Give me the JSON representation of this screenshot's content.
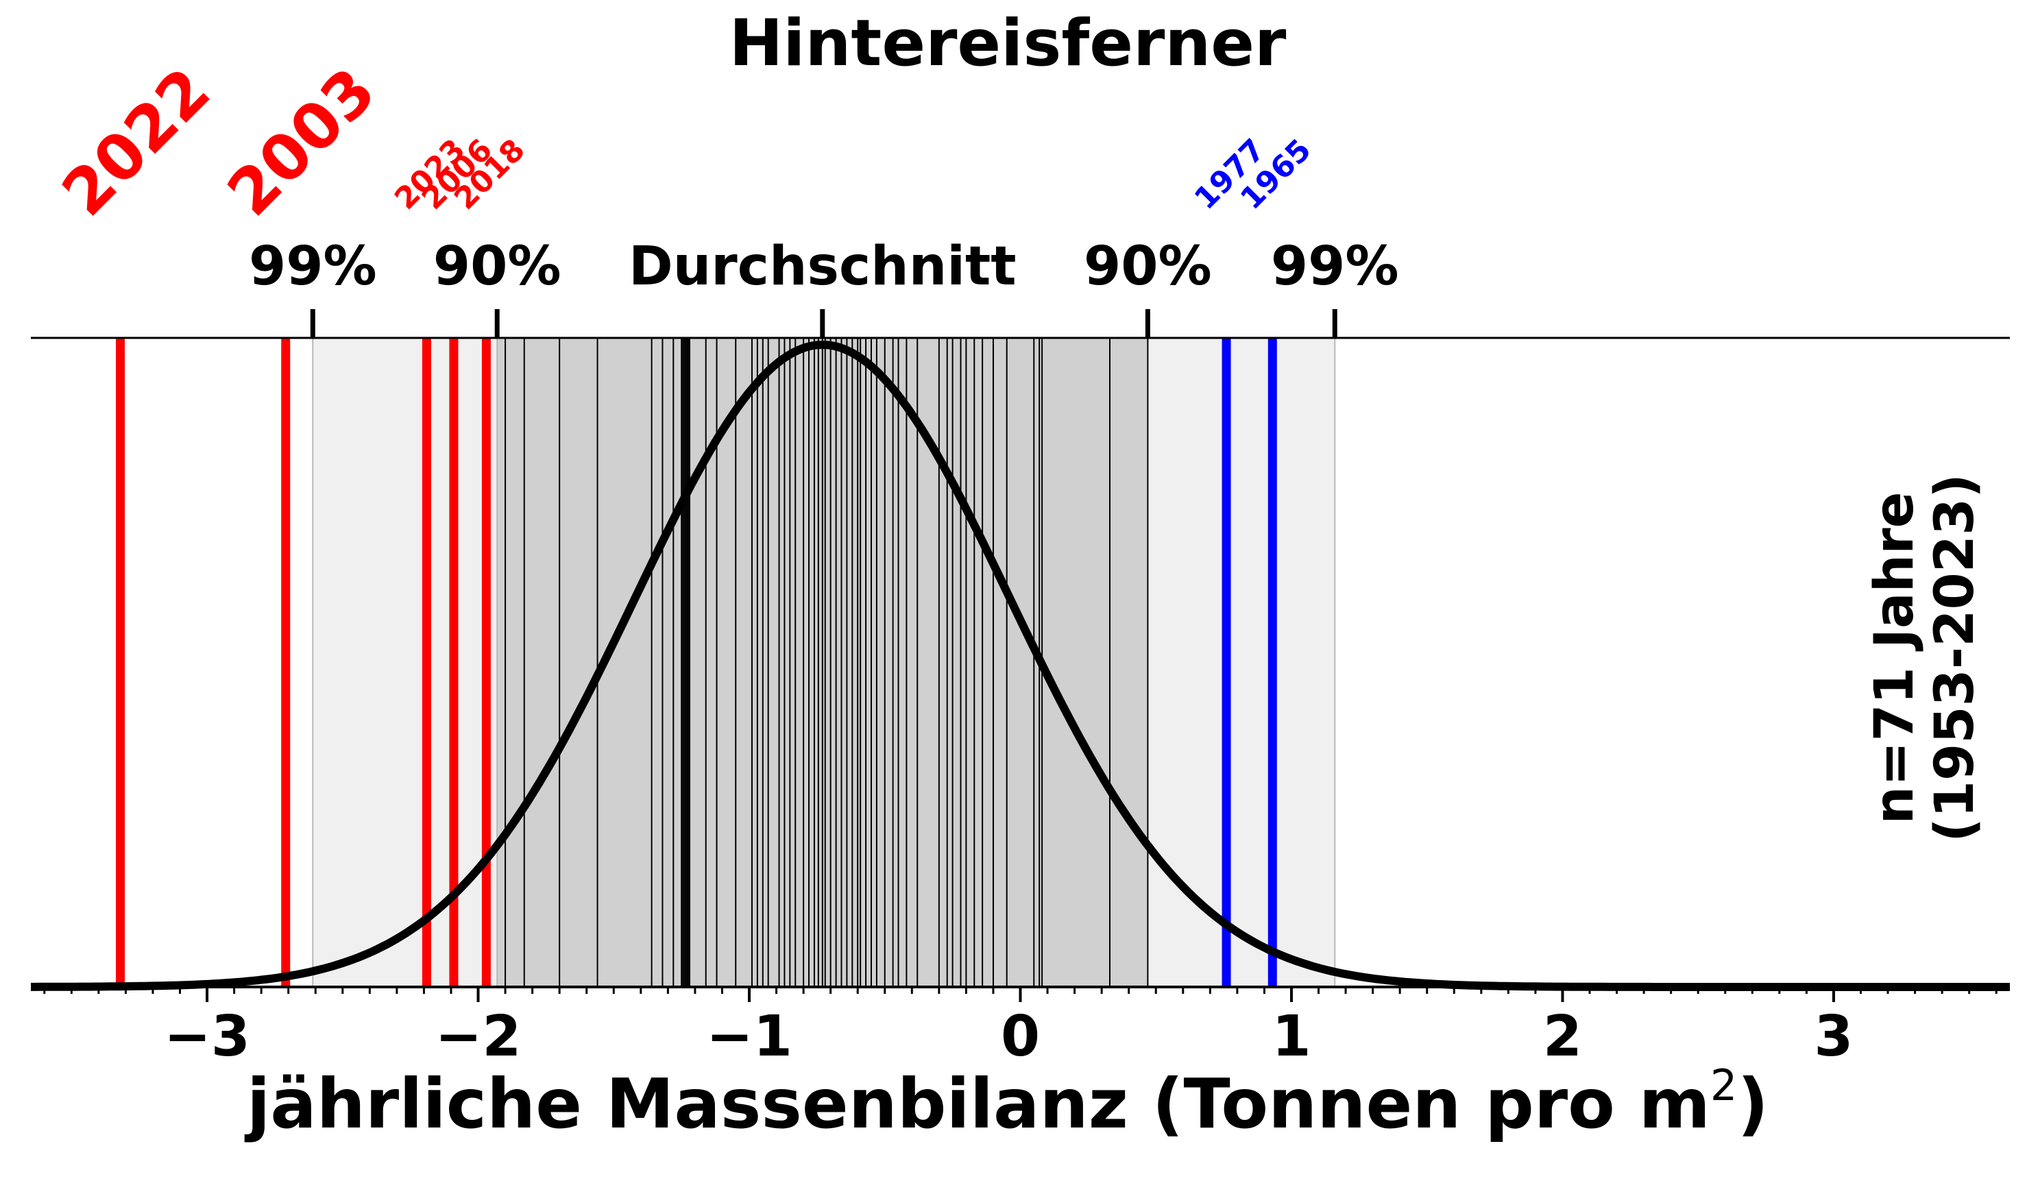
{
  "chart_data": {
    "type": "distribution",
    "title": "Hintereisferner",
    "xlabel": "jährliche Massenbilanz (Tonnen pro m²)",
    "xlabel_main": "jährliche Massenbilanz (Tonnen pro m",
    "xlabel_sup": "2",
    "xlabel_close": ")",
    "xlim": [
      -3.65,
      3.65
    ],
    "xticks": [
      {
        "value": -3,
        "label": "−3"
      },
      {
        "value": -2,
        "label": "−2"
      },
      {
        "value": -1,
        "label": "−1"
      },
      {
        "value": 0,
        "label": "0"
      },
      {
        "value": 1,
        "label": "1"
      },
      {
        "value": 2,
        "label": "2"
      },
      {
        "value": 3,
        "label": "3"
      }
    ],
    "minor_tick_step": 0.1,
    "distribution": {
      "mean": -0.73,
      "sd": 0.69
    },
    "percentile_markers": [
      {
        "value": -2.61,
        "label": "99%"
      },
      {
        "value": -1.93,
        "label": "90%"
      },
      {
        "value": -0.73,
        "label": "Durchschnitt"
      },
      {
        "value": 0.47,
        "label": "90%"
      },
      {
        "value": 1.16,
        "label": "99%"
      }
    ],
    "bands": [
      {
        "from": -2.61,
        "to": 1.16,
        "color": "#f0f0f0"
      },
      {
        "from": -1.93,
        "to": 0.47,
        "color": "#d0d0d0"
      }
    ],
    "year_lines": [
      -1.9,
      -1.83,
      -1.7,
      -1.56,
      -1.36,
      -1.32,
      -1.28,
      -1.25,
      -1.245,
      -1.24,
      -1.235,
      -1.23,
      -1.225,
      -1.22,
      -1.16,
      -1.12,
      -1.05,
      -0.99,
      -0.97,
      -0.95,
      -0.93,
      -0.89,
      -0.87,
      -0.85,
      -0.83,
      -0.8,
      -0.78,
      -0.76,
      -0.745,
      -0.73,
      -0.72,
      -0.7,
      -0.68,
      -0.66,
      -0.64,
      -0.62,
      -0.6,
      -0.59,
      -0.57,
      -0.55,
      -0.53,
      -0.5,
      -0.47,
      -0.45,
      -0.42,
      -0.38,
      -0.3,
      -0.27,
      -0.25,
      -0.22,
      -0.2,
      -0.17,
      -0.14,
      -0.1,
      -0.05,
      0.05,
      0.07,
      0.08,
      0.33,
      0.47
    ],
    "highlighted_years": [
      {
        "year": "2022",
        "value": -3.32,
        "color": "#ff0000",
        "size": "large"
      },
      {
        "year": "2003",
        "value": -2.71,
        "color": "#ff0000",
        "size": "large"
      },
      {
        "year": "2023",
        "value": -2.19,
        "color": "#ff0000",
        "size": "small"
      },
      {
        "year": "2006",
        "value": -2.09,
        "color": "#ff0000",
        "size": "small"
      },
      {
        "year": "2018",
        "value": -1.97,
        "color": "#ff0000",
        "size": "small"
      },
      {
        "year": "1977",
        "value": 0.76,
        "color": "#0000ff",
        "size": "small"
      },
      {
        "year": "1965",
        "value": 0.93,
        "color": "#0000ff",
        "size": "small"
      }
    ],
    "side_note": [
      "n=71 Jahre",
      "(1953-2023)"
    ]
  }
}
